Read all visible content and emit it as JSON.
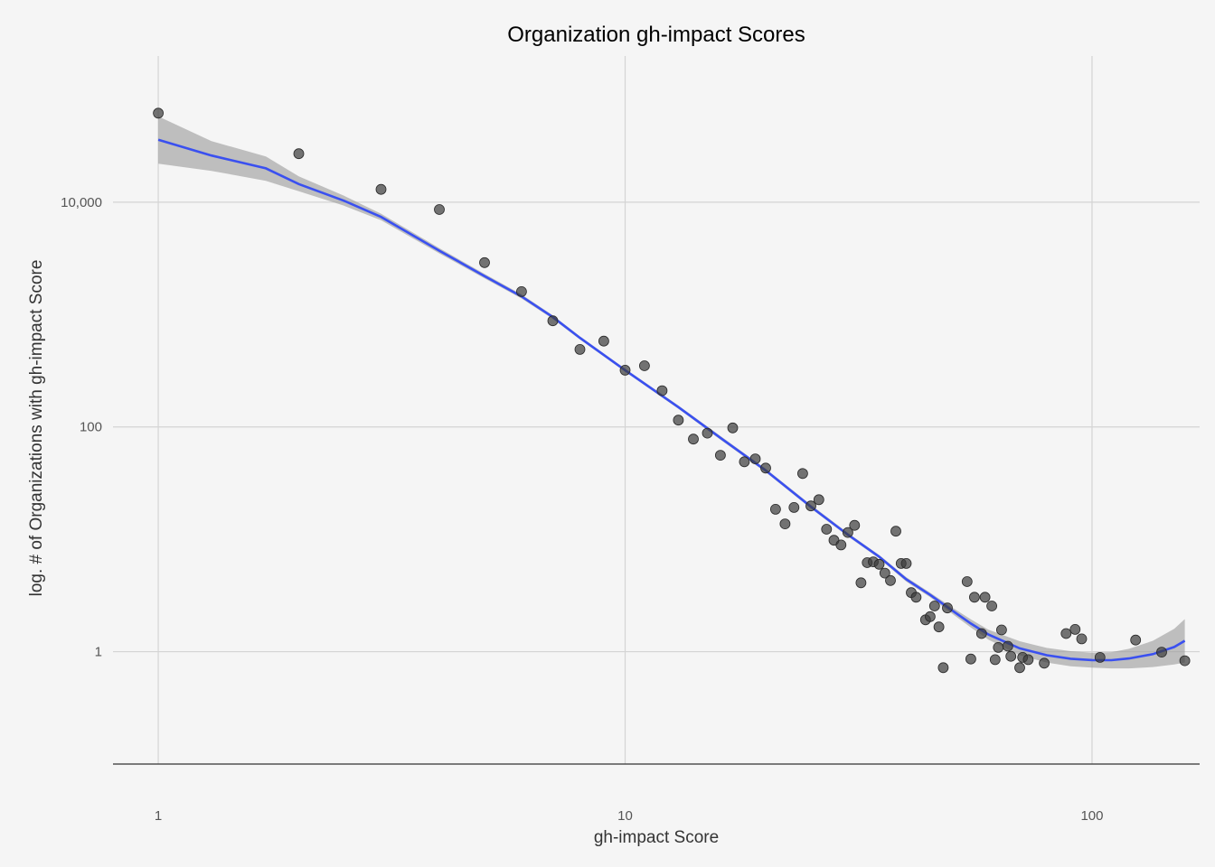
{
  "chart_data": {
    "type": "scatter",
    "title": "Organization gh-impact Scores",
    "xlabel": "gh-impact Score",
    "ylabel": "log. # of Organizations with gh-impact Score",
    "x_scale": "log10",
    "y_scale": "log10",
    "xlim": [
      0.8,
      170
    ],
    "ylim": [
      0.1,
      200000
    ],
    "x_ticks": [
      {
        "value": 1,
        "label": "1"
      },
      {
        "value": 10,
        "label": "10"
      },
      {
        "value": 100,
        "label": "100"
      }
    ],
    "y_ticks": [
      {
        "value": 1,
        "label": "1"
      },
      {
        "value": 100,
        "label": "100"
      },
      {
        "value": 10000,
        "label": "10,000"
      }
    ],
    "grid": true,
    "points": [
      {
        "x": 1,
        "y": 62000
      },
      {
        "x": 2,
        "y": 27000
      },
      {
        "x": 3,
        "y": 13000
      },
      {
        "x": 4,
        "y": 8600
      },
      {
        "x": 5,
        "y": 2900
      },
      {
        "x": 6,
        "y": 1600
      },
      {
        "x": 7,
        "y": 880
      },
      {
        "x": 8,
        "y": 490
      },
      {
        "x": 9,
        "y": 580
      },
      {
        "x": 10,
        "y": 320
      },
      {
        "x": 11,
        "y": 350
      },
      {
        "x": 12,
        "y": 210
      },
      {
        "x": 13,
        "y": 115
      },
      {
        "x": 14,
        "y": 78
      },
      {
        "x": 15,
        "y": 88
      },
      {
        "x": 16,
        "y": 56
      },
      {
        "x": 17,
        "y": 98
      },
      {
        "x": 18,
        "y": 49
      },
      {
        "x": 19,
        "y": 52
      },
      {
        "x": 20,
        "y": 43
      },
      {
        "x": 21,
        "y": 18.5
      },
      {
        "x": 22,
        "y": 13.7
      },
      {
        "x": 23,
        "y": 19.2
      },
      {
        "x": 24,
        "y": 38.5
      },
      {
        "x": 25,
        "y": 19.8
      },
      {
        "x": 26,
        "y": 22.5
      },
      {
        "x": 27,
        "y": 12.3
      },
      {
        "x": 28,
        "y": 9.8
      },
      {
        "x": 29,
        "y": 8.9
      },
      {
        "x": 30,
        "y": 11.5
      },
      {
        "x": 31,
        "y": 13.3
      },
      {
        "x": 32,
        "y": 4.1
      },
      {
        "x": 33,
        "y": 6.2
      },
      {
        "x": 34,
        "y": 6.3
      },
      {
        "x": 35,
        "y": 6.0
      },
      {
        "x": 36,
        "y": 5.0
      },
      {
        "x": 37,
        "y": 4.3
      },
      {
        "x": 38,
        "y": 11.8
      },
      {
        "x": 39,
        "y": 6.1
      },
      {
        "x": 40,
        "y": 6.1
      },
      {
        "x": 41,
        "y": 3.35
      },
      {
        "x": 42,
        "y": 3.05
      },
      {
        "x": 44,
        "y": 1.92
      },
      {
        "x": 45,
        "y": 2.05
      },
      {
        "x": 46,
        "y": 2.55
      },
      {
        "x": 47,
        "y": 1.66
      },
      {
        "x": 48,
        "y": 0.72
      },
      {
        "x": 49,
        "y": 2.45
      },
      {
        "x": 54,
        "y": 4.2
      },
      {
        "x": 55,
        "y": 0.86
      },
      {
        "x": 56,
        "y": 3.05
      },
      {
        "x": 58,
        "y": 1.45
      },
      {
        "x": 59,
        "y": 3.05
      },
      {
        "x": 61,
        "y": 2.55
      },
      {
        "x": 62,
        "y": 0.85
      },
      {
        "x": 63,
        "y": 1.09
      },
      {
        "x": 64,
        "y": 1.56
      },
      {
        "x": 66,
        "y": 1.12
      },
      {
        "x": 67,
        "y": 0.91
      },
      {
        "x": 70,
        "y": 0.72
      },
      {
        "x": 71,
        "y": 0.89
      },
      {
        "x": 73,
        "y": 0.85
      },
      {
        "x": 79,
        "y": 0.79
      },
      {
        "x": 88,
        "y": 1.45
      },
      {
        "x": 92,
        "y": 1.58
      },
      {
        "x": 95,
        "y": 1.3
      },
      {
        "x": 104,
        "y": 0.89
      },
      {
        "x": 124,
        "y": 1.27
      },
      {
        "x": 141,
        "y": 0.99
      },
      {
        "x": 158,
        "y": 0.83
      }
    ],
    "trend": {
      "name": "",
      "color": "#3a50f0",
      "band_color": "#9a9a9a",
      "x": [
        1,
        1.3,
        1.7,
        2,
        2.5,
        3,
        4,
        5,
        6,
        7,
        8,
        10,
        13,
        16,
        20,
        25,
        30,
        35,
        40,
        45,
        50,
        55,
        60,
        70,
        80,
        90,
        100,
        110,
        120,
        135,
        150,
        158
      ],
      "y": [
        36000,
        26000,
        20000,
        14500,
        10300,
        7400,
        3700,
        2200,
        1450,
        950,
        620,
        320,
        150,
        80,
        41,
        19.5,
        11,
        7.0,
        4.4,
        3.2,
        2.35,
        1.78,
        1.42,
        1.07,
        0.93,
        0.865,
        0.842,
        0.84,
        0.87,
        0.95,
        1.1,
        1.25
      ],
      "lower": [
        22000,
        19000,
        15500,
        12500,
        9300,
        6900,
        3500,
        2100,
        1390,
        915,
        600,
        310,
        145,
        77,
        39.5,
        18.8,
        10.6,
        6.75,
        4.2,
        3.05,
        2.2,
        1.64,
        1.28,
        0.93,
        0.8,
        0.74,
        0.72,
        0.71,
        0.71,
        0.73,
        0.77,
        0.8
      ],
      "upper": [
        58000,
        35000,
        25500,
        17000,
        11400,
        7900,
        3900,
        2300,
        1510,
        985,
        640,
        330,
        155,
        83,
        42.5,
        20.3,
        11.4,
        7.25,
        4.6,
        3.35,
        2.5,
        1.94,
        1.57,
        1.24,
        1.08,
        1.01,
        0.98,
        0.99,
        1.06,
        1.25,
        1.6,
        1.95
      ]
    }
  }
}
